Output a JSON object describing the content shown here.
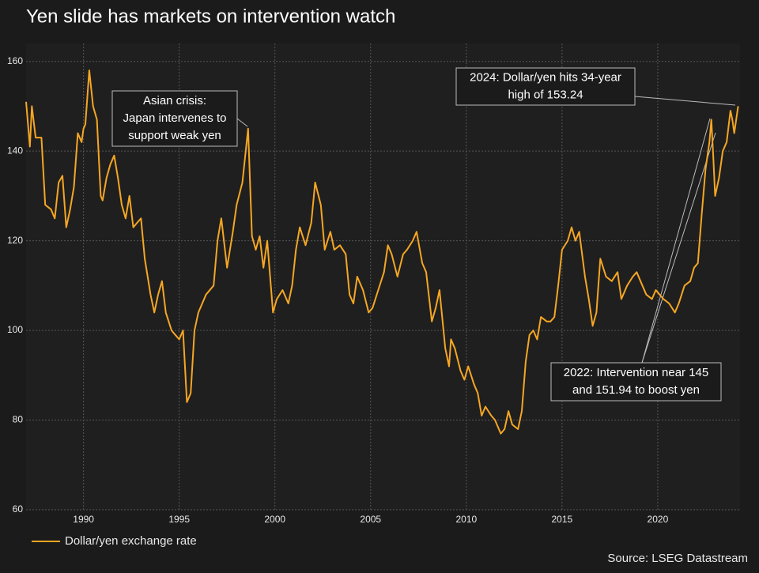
{
  "chart_data": {
    "type": "line",
    "title": "Yen slide has markets on intervention watch",
    "source": "Source: LSEG Datastream",
    "xlim": [
      1987.0,
      2024.3
    ],
    "ylim": [
      60,
      164
    ],
    "xticks": [
      1990,
      1995,
      2000,
      2005,
      2010,
      2015,
      2020
    ],
    "yticks": [
      60,
      80,
      100,
      120,
      140,
      160
    ],
    "grid": true,
    "legend": "bottom-left",
    "annotations": [
      {
        "lines": [
          "Asian crisis:",
          "Japan intervenes to",
          "support weak yen"
        ]
      },
      {
        "lines": [
          "2024: Dollar/yen hits 34-year",
          "high of 153.24"
        ]
      },
      {
        "lines": [
          "2022: Intervention near 145",
          "and 151.94 to boost yen"
        ]
      }
    ],
    "series": [
      {
        "name": "Dollar/yen exchange rate",
        "color": "#f5a623",
        "x": [
          1987.0,
          1987.2,
          1987.3,
          1987.5,
          1987.8,
          1988.0,
          1988.3,
          1988.5,
          1988.7,
          1988.9,
          1989.1,
          1989.3,
          1989.5,
          1989.7,
          1989.9,
          1990.0,
          1990.1,
          1990.3,
          1990.5,
          1990.7,
          1990.9,
          1991.0,
          1991.2,
          1991.4,
          1991.6,
          1991.8,
          1992.0,
          1992.2,
          1992.4,
          1992.6,
          1992.8,
          1993.0,
          1993.2,
          1993.5,
          1993.7,
          1993.9,
          1994.1,
          1994.3,
          1994.6,
          1994.8,
          1995.0,
          1995.2,
          1995.4,
          1995.6,
          1995.8,
          1996.0,
          1996.4,
          1996.8,
          1997.0,
          1997.2,
          1997.5,
          1997.8,
          1998.0,
          1998.3,
          1998.6,
          1998.8,
          1999.0,
          1999.2,
          1999.4,
          1999.6,
          1999.9,
          2000.1,
          2000.4,
          2000.7,
          2000.9,
          2001.1,
          2001.3,
          2001.6,
          2001.9,
          2002.1,
          2002.4,
          2002.6,
          2002.9,
          2003.1,
          2003.4,
          2003.7,
          2003.9,
          2004.1,
          2004.3,
          2004.6,
          2004.9,
          2005.1,
          2005.4,
          2005.7,
          2005.9,
          2006.1,
          2006.4,
          2006.7,
          2006.9,
          2007.2,
          2007.4,
          2007.7,
          2007.9,
          2008.2,
          2008.4,
          2008.6,
          2008.9,
          2009.1,
          2009.2,
          2009.4,
          2009.7,
          2009.9,
          2010.1,
          2010.4,
          2010.6,
          2010.8,
          2011.0,
          2011.3,
          2011.5,
          2011.8,
          2012.0,
          2012.2,
          2012.4,
          2012.7,
          2012.9,
          2013.1,
          2013.3,
          2013.5,
          2013.7,
          2013.9,
          2014.2,
          2014.4,
          2014.6,
          2014.8,
          2015.0,
          2015.3,
          2015.5,
          2015.7,
          2015.9,
          2016.2,
          2016.4,
          2016.6,
          2016.8,
          2017.0,
          2017.3,
          2017.6,
          2017.9,
          2018.1,
          2018.4,
          2018.7,
          2018.9,
          2019.1,
          2019.4,
          2019.7,
          2019.9,
          2020.1,
          2020.3,
          2020.6,
          2020.9,
          2021.1,
          2021.4,
          2021.7,
          2021.9,
          2022.1,
          2022.3,
          2022.5,
          2022.7,
          2022.8,
          2022.9,
          2023.0,
          2023.2,
          2023.4,
          2023.6,
          2023.8,
          2023.9,
          2024.0,
          2024.2
        ],
        "values": [
          151,
          141,
          150,
          143,
          143,
          128,
          127,
          125,
          133,
          134.5,
          123,
          127,
          132,
          144,
          142,
          145,
          146,
          158,
          150,
          147,
          130,
          129,
          134,
          137,
          139,
          134,
          128,
          125,
          130,
          123,
          124,
          125,
          116,
          108,
          104,
          108,
          111,
          104,
          100,
          99,
          98,
          100,
          84,
          86,
          100,
          104,
          108,
          110,
          120,
          125,
          114,
          122,
          128,
          133,
          145,
          121,
          118,
          121,
          114,
          120,
          104,
          107,
          109,
          106,
          110,
          118,
          123,
          119,
          124,
          133,
          128,
          118,
          122,
          118,
          119,
          117,
          108,
          106,
          112,
          109,
          104,
          105,
          109,
          113,
          119,
          117,
          112,
          117,
          118,
          120,
          122,
          115,
          113,
          102,
          105,
          109,
          96,
          92,
          98,
          96,
          91,
          89,
          92,
          88,
          86,
          81,
          83,
          81,
          80,
          77,
          78,
          82,
          79,
          78,
          82,
          93,
          99,
          100,
          98,
          103,
          102,
          102,
          103,
          110,
          118,
          120,
          123,
          120,
          122,
          112,
          107,
          101,
          104,
          116,
          112,
          111,
          113,
          107,
          110,
          112,
          113,
          111,
          108,
          107,
          109,
          108,
          107,
          106,
          104,
          106,
          110,
          111,
          114,
          115,
          126,
          136,
          142,
          147,
          139,
          130,
          134,
          140,
          142,
          149,
          147,
          144,
          150
        ]
      }
    ]
  }
}
